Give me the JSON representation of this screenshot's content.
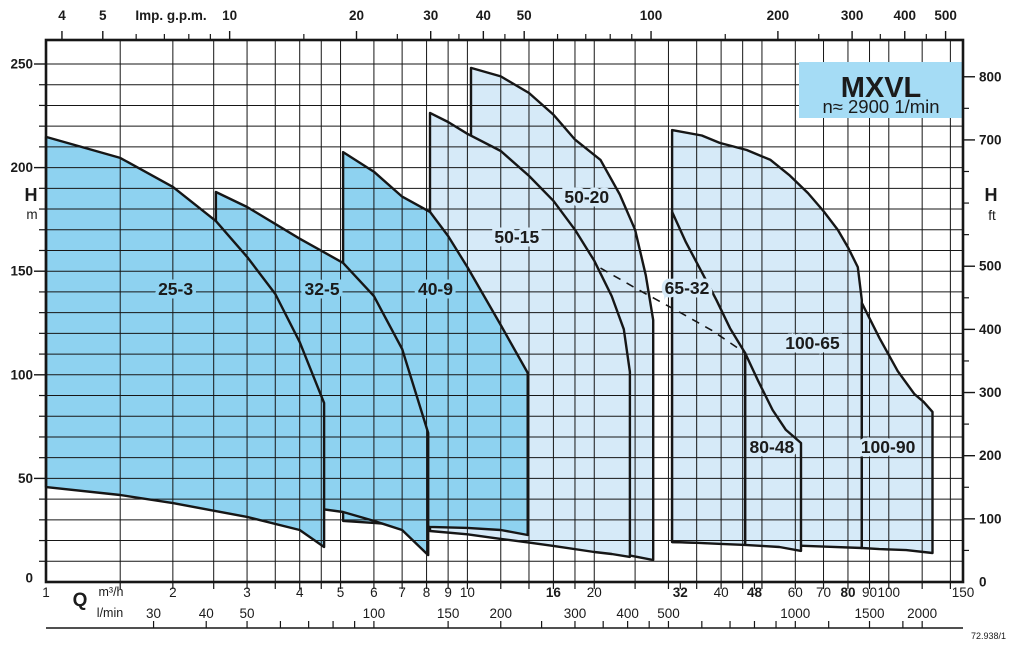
{
  "title_box": {
    "series_name": "MXVL",
    "speed_line": "n≈ 2900 1/min"
  },
  "doc_number": "72.938/1",
  "chart_data": {
    "type": "area",
    "title": "MXVL pump selection ranges, n≈2900 1/min",
    "x_scale": "log",
    "x_unit_primary": "m³/h",
    "x_range_m3h": [
      1,
      150
    ],
    "y_unit_primary": "m",
    "y_range_m": [
      0,
      261.6
    ],
    "grid": {
      "x_lines_m3h": [
        1.5,
        2,
        2.5,
        3,
        3.5,
        4,
        4.5,
        5,
        6,
        7,
        8,
        9,
        10,
        12,
        14,
        16,
        18,
        20,
        25,
        30,
        35,
        40,
        45,
        50,
        60,
        70,
        80,
        90,
        100,
        120,
        140
      ],
      "y_step_m": 10,
      "y_max_m": 250
    },
    "axes": {
      "top": {
        "label": "Imp. g.p.m.",
        "gpm_per_m3h": 3.6661,
        "major_ticks": [
          4,
          5,
          10,
          20,
          30,
          40,
          50,
          100,
          200,
          300,
          400,
          500
        ],
        "minor_ticks": [
          6,
          7,
          8,
          9,
          15,
          25,
          35,
          45,
          60,
          70,
          80,
          90,
          150,
          250,
          350,
          450
        ]
      },
      "left": {
        "label": "H",
        "unit": "m",
        "labeled_ticks": [
          0,
          50,
          100,
          150,
          200,
          250
        ],
        "minor_ticks": [
          10,
          20,
          30,
          40,
          60,
          70,
          80,
          90,
          110,
          120,
          130,
          140,
          160,
          170,
          180,
          190,
          210,
          220,
          230,
          240
        ]
      },
      "right": {
        "label": "H",
        "unit": "ft",
        "ft_per_m": 3.2808,
        "labeled_ticks": [
          0,
          100,
          200,
          300,
          400,
          500,
          700,
          800
        ],
        "minor_ticks": [
          50,
          150,
          250,
          350,
          450,
          550,
          600,
          650,
          750
        ]
      },
      "bottom": {
        "label": "Q",
        "rows": [
          {
            "unit": "m³/h",
            "labels": [
              1,
              2,
              3,
              4,
              5,
              6,
              7,
              8,
              9,
              10,
              16,
              20,
              32,
              40,
              48,
              60,
              70,
              80,
              90,
              100,
              150
            ],
            "bold_labels": [
              16,
              32,
              48,
              80
            ],
            "border_ticks": [
              1.5,
              2,
              2.5,
              3,
              3.5,
              4,
              4.5,
              5,
              6,
              7,
              8,
              9,
              10,
              12,
              14,
              16,
              18,
              20,
              25,
              30,
              32,
              35,
              40,
              45,
              48,
              50,
              60,
              70,
              80,
              90,
              100,
              120,
              140
            ]
          },
          {
            "unit": "l/min",
            "lmin_per_m3h": 16.667,
            "labels": [
              30,
              40,
              50,
              100,
              150,
              200,
              300,
              400,
              500,
              1000,
              1500,
              2000
            ],
            "minor_ticks": [
              60,
              70,
              80,
              90,
              250,
              350,
              450,
              600,
              700,
              800,
              900,
              1200,
              1800
            ]
          }
        ]
      }
    },
    "envelopes": [
      {
        "name": "100-65",
        "group": "light",
        "label_at": [
          65.9,
          115.4
        ],
        "outline": [
          [
            30.6,
            218.1
          ],
          [
            36,
            215.5
          ],
          [
            39.7,
            211.9
          ],
          [
            46,
            208.5
          ],
          [
            52.4,
            203.7
          ],
          [
            58,
            196.5
          ],
          [
            64.3,
            187.7
          ],
          [
            70,
            179
          ],
          [
            75.7,
            169.9
          ],
          [
            80,
            161.5
          ],
          [
            84.4,
            152
          ],
          [
            86.3,
            136.1
          ],
          [
            86.3,
            16.4
          ],
          [
            70,
            17.1
          ],
          [
            55,
            17.9
          ],
          [
            45,
            18.2
          ],
          [
            38,
            18.8
          ],
          [
            30.6,
            19.3
          ]
        ]
      },
      {
        "name": "100-90",
        "group": "light",
        "label_at": [
          99.6,
          65.2
        ],
        "outline": [
          [
            86.3,
            134.7
          ],
          [
            95,
            117.8
          ],
          [
            105,
            101.8
          ],
          [
            115,
            90.7
          ],
          [
            121,
            86.9
          ],
          [
            127,
            82.1
          ],
          [
            127,
            14
          ],
          [
            110,
            15.4
          ],
          [
            95,
            15.9
          ],
          [
            86.3,
            16.4
          ]
        ]
      },
      {
        "name": "80-48",
        "group": "light",
        "label_at": [
          52.8,
          65.2
        ],
        "outline": [
          [
            45.6,
            110.5
          ],
          [
            49,
            97
          ],
          [
            53,
            83
          ],
          [
            57,
            73.4
          ],
          [
            61.9,
            67.1
          ],
          [
            61.9,
            15
          ],
          [
            55,
            16.9
          ],
          [
            50,
            17.4
          ],
          [
            45.6,
            17.9
          ]
        ]
      },
      {
        "name": "65-32",
        "group": "light",
        "label_at": [
          33.2,
          141.9
        ],
        "outline": [
          [
            30.6,
            178.6
          ],
          [
            33,
            164
          ],
          [
            36,
            149.5
          ],
          [
            39,
            136
          ],
          [
            42,
            122.5
          ],
          [
            45.6,
            110.5
          ],
          [
            45.6,
            17.9
          ],
          [
            40,
            18.4
          ],
          [
            35,
            18.9
          ],
          [
            30.6,
            19.3
          ]
        ]
      },
      {
        "name": "50-20",
        "group": "light",
        "label_at": [
          19.2,
          185.9
        ],
        "outline": [
          [
            10.2,
            248.1
          ],
          [
            12,
            244
          ],
          [
            14,
            236
          ],
          [
            16,
            225.6
          ],
          [
            18,
            213.5
          ],
          [
            20.7,
            203.7
          ],
          [
            23,
            187
          ],
          [
            25,
            170
          ],
          [
            26.5,
            148
          ],
          [
            27.6,
            126.4
          ],
          [
            27.6,
            10.6
          ],
          [
            24,
            13
          ],
          [
            20,
            16
          ],
          [
            16,
            19.3
          ],
          [
            14,
            21
          ],
          [
            12,
            22.5
          ],
          [
            10.2,
            23.6
          ]
        ]
      },
      {
        "name": "50-15",
        "group": "light",
        "label_at": [
          13.1,
          166.5
        ],
        "outline": [
          [
            8.15,
            226.4
          ],
          [
            9,
            222
          ],
          [
            10,
            216.3
          ],
          [
            12,
            208
          ],
          [
            14,
            196
          ],
          [
            16,
            184
          ],
          [
            18,
            170
          ],
          [
            20,
            155
          ],
          [
            22,
            138
          ],
          [
            23.5,
            122
          ],
          [
            24.3,
            101.4
          ],
          [
            24.3,
            12.1
          ],
          [
            22,
            13.5
          ],
          [
            20,
            14.5
          ],
          [
            16,
            17.4
          ],
          [
            14,
            19
          ],
          [
            12,
            20.8
          ],
          [
            10,
            23
          ],
          [
            8.15,
            24.6
          ]
        ]
      },
      {
        "name": "40-9",
        "group": "dark",
        "label_at": [
          8.4,
          141.4
        ],
        "outline": [
          [
            5.07,
            207.5
          ],
          [
            6,
            198
          ],
          [
            7,
            186
          ],
          [
            8.15,
            178.6
          ],
          [
            9,
            167
          ],
          [
            10,
            152
          ],
          [
            12,
            124
          ],
          [
            13.9,
            100.9
          ],
          [
            13.9,
            22.7
          ],
          [
            12,
            25.1
          ],
          [
            10,
            26.1
          ],
          [
            8.15,
            26.6
          ],
          [
            7,
            27.5
          ],
          [
            6,
            28.5
          ],
          [
            5.07,
            29.5
          ]
        ]
      },
      {
        "name": "32-5",
        "group": "dark",
        "label_at": [
          4.52,
          141.4
        ],
        "outline": [
          [
            2.53,
            188.2
          ],
          [
            3,
            181
          ],
          [
            4,
            165.7
          ],
          [
            5.07,
            154
          ],
          [
            6,
            138
          ],
          [
            7,
            112.5
          ],
          [
            8.07,
            71.9
          ],
          [
            8.07,
            13
          ],
          [
            7,
            25.1
          ],
          [
            6,
            29.5
          ],
          [
            5.07,
            33.8
          ],
          [
            4,
            36.7
          ],
          [
            3,
            38.6
          ],
          [
            2.53,
            39.6
          ]
        ]
      },
      {
        "name": "25-3",
        "group": "dark",
        "label_at": [
          2.03,
          141.4
        ],
        "outline": [
          [
            1,
            214.8
          ],
          [
            1.5,
            204.7
          ],
          [
            2,
            190.7
          ],
          [
            2.53,
            174.2
          ],
          [
            3,
            156.9
          ],
          [
            3.5,
            139
          ],
          [
            4,
            115.8
          ],
          [
            4.57,
            86.4
          ],
          [
            4.57,
            16.9
          ],
          [
            4,
            25.1
          ],
          [
            3,
            31.4
          ],
          [
            2,
            38.1
          ],
          [
            1.5,
            42
          ],
          [
            1,
            45.8
          ]
        ]
      }
    ],
    "dashed_line_qh": [
      [
        20.7,
        151.5
      ],
      [
        26,
        140
      ],
      [
        32,
        130
      ],
      [
        38,
        121.5
      ],
      [
        45.6,
        110.5
      ]
    ],
    "colors": {
      "dark_fill": "#8ed2f0",
      "light_fill": "#d6eaf8",
      "box_fill": "#a5dcf5",
      "line": "#161616"
    }
  }
}
